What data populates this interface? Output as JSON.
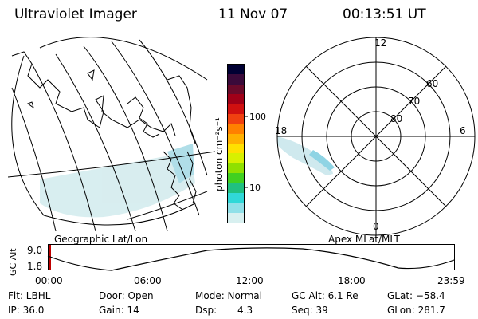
{
  "header": {
    "instrument": "Ultraviolet Imager",
    "date": "11 Nov 07",
    "time": "00:13:51 UT"
  },
  "map_left": {
    "caption": "Geographic Lat/Lon"
  },
  "colorbar": {
    "label": "photon cm⁻²s⁻¹",
    "ticks": [
      "100",
      "10"
    ],
    "colors": [
      "#000033",
      "#3a0a3a",
      "#6a0a2a",
      "#a00018",
      "#d01010",
      "#f04010",
      "#ff8000",
      "#ffb000",
      "#ffe000",
      "#d8f000",
      "#90e000",
      "#40d020",
      "#20c080",
      "#30d8d8",
      "#90e0e8",
      "#d8f0f0"
    ]
  },
  "polar_plot": {
    "caption": "Apex MLat/MLT",
    "mlt_labels": {
      "top": "12",
      "left": "18",
      "right": "6",
      "bottom": "0"
    },
    "lat_labels": [
      "60",
      "70",
      "80"
    ]
  },
  "altitude_track": {
    "ylabel": "GC Alt",
    "yticks": [
      "9.0",
      "1.8"
    ],
    "xticks": [
      "00:00",
      "06:00",
      "12:00",
      "18:00",
      "23:59"
    ]
  },
  "status": {
    "filter": "Flt: LBHL",
    "ip": "IP: 36.0",
    "door": "Door: Open",
    "gain": "Gain: 14",
    "mode": "Mode: Normal",
    "dsp_label": "Dsp:",
    "dsp_value": "4.3",
    "gc_alt": "GC Alt: 6.1 Re",
    "seq": "Seq: 39",
    "glat": "GLat: −58.4",
    "glon": "GLon: 281.7"
  }
}
